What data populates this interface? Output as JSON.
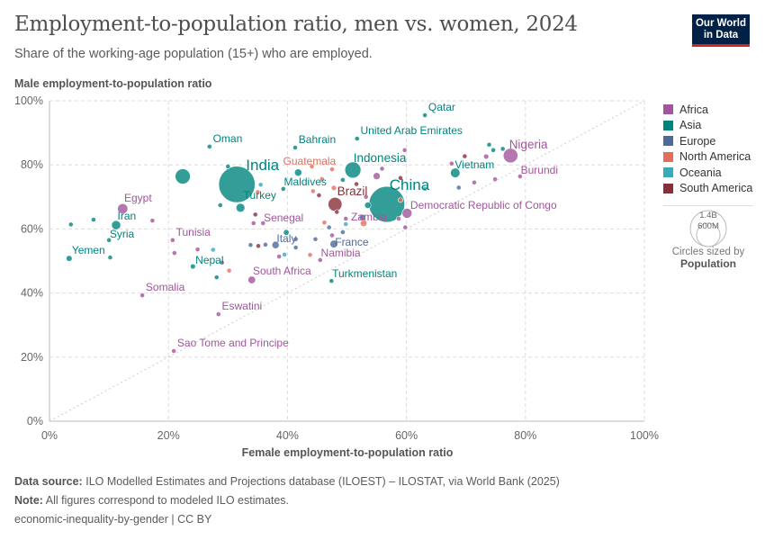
{
  "header": {
    "title": "Employment-to-population ratio, men vs. women, 2024",
    "subtitle": "Share of the working-age population (15+) who are employed.",
    "logo": "Our World in Data"
  },
  "legend": {
    "regions": [
      {
        "name": "Africa",
        "color": "#a2559c"
      },
      {
        "name": "Asia",
        "color": "#00847e"
      },
      {
        "name": "Europe",
        "color": "#4c6a9c"
      },
      {
        "name": "North America",
        "color": "#e56e5a"
      },
      {
        "name": "Oceania",
        "color": "#38aaba"
      },
      {
        "name": "South America",
        "color": "#883039"
      }
    ],
    "size_large": "1.4B",
    "size_small": "600M",
    "size_caption": "Circles sized by",
    "size_variable": "Population"
  },
  "footer": {
    "source_label": "Data source:",
    "source": "ILO Modelled Estimates and Projections database (ILOEST) – ILOSTAT, via World Bank (2025)",
    "note_label": "Note:",
    "note": "All figures correspond to modeled ILO estimates.",
    "link": "economic-inequality-by-gender | CC BY"
  },
  "chart_data": {
    "type": "scatter",
    "title": "Employment-to-population ratio, men vs. women, 2024",
    "xlabel": "Female employment-to-population ratio",
    "ylabel": "Male employment-to-population ratio",
    "xlim": [
      0,
      100
    ],
    "ylim": [
      0,
      100
    ],
    "x_ticks": [
      "0%",
      "20%",
      "40%",
      "60%",
      "80%",
      "100%"
    ],
    "y_ticks": [
      "0%",
      "20%",
      "40%",
      "60%",
      "80%",
      "100%"
    ],
    "grid": true,
    "reference_line": "y = x",
    "legend_position": "right",
    "points": [
      {
        "name": "Qatar",
        "region": "Asia",
        "x": 63.1,
        "y": 95.5,
        "pop": 3
      },
      {
        "name": "United Arab Emirates",
        "region": "Asia",
        "x": 51.7,
        "y": 88.2,
        "pop": 10
      },
      {
        "name": "Oman",
        "region": "Asia",
        "x": 26.9,
        "y": 85.7,
        "pop": 5
      },
      {
        "name": "Bahrain",
        "region": "Asia",
        "x": 41.3,
        "y": 85.4,
        "pop": 1.5
      },
      {
        "name": "India",
        "region": "Asia",
        "x": 31.5,
        "y": 73.9,
        "pop": 1450
      },
      {
        "name": "Indonesia",
        "region": "Asia",
        "x": 51.0,
        "y": 78.4,
        "pop": 283
      },
      {
        "name": "Guatemala",
        "region": "North America",
        "x": 45.8,
        "y": 75.6,
        "pop": 18
      },
      {
        "name": "Maldives",
        "region": "Asia",
        "x": 39.3,
        "y": 72.5,
        "pop": 0.5
      },
      {
        "name": "Turkey",
        "region": "Asia",
        "x": 32.1,
        "y": 66.6,
        "pop": 87
      },
      {
        "name": "Egypt",
        "region": "Africa",
        "x": 12.3,
        "y": 66.3,
        "pop": 116
      },
      {
        "name": "Iran",
        "region": "Asia",
        "x": 11.2,
        "y": 61.2,
        "pop": 91
      },
      {
        "name": "Syria",
        "region": "Asia",
        "x": 10.0,
        "y": 56.5,
        "pop": 24
      },
      {
        "name": "Yemen",
        "region": "Asia",
        "x": 3.3,
        "y": 50.8,
        "pop": 40
      },
      {
        "name": "Tunisia",
        "region": "Africa",
        "x": 20.7,
        "y": 56.5,
        "pop": 12
      },
      {
        "name": "Nepal",
        "region": "Asia",
        "x": 24.1,
        "y": 48.3,
        "pop": 30
      },
      {
        "name": "Senegal",
        "region": "Africa",
        "x": 35.9,
        "y": 61.8,
        "pop": 18
      },
      {
        "name": "Italy",
        "region": "Europe",
        "x": 38.0,
        "y": 55.0,
        "pop": 59
      },
      {
        "name": "South Africa",
        "region": "Africa",
        "x": 34.0,
        "y": 44.1,
        "pop": 64
      },
      {
        "name": "Somalia",
        "region": "Africa",
        "x": 15.6,
        "y": 39.3,
        "pop": 19
      },
      {
        "name": "Eswatini",
        "region": "Africa",
        "x": 28.4,
        "y": 33.4,
        "pop": 1.2
      },
      {
        "name": "Sao Tome and Principe",
        "region": "Africa",
        "x": 20.9,
        "y": 21.9,
        "pop": 0.2
      },
      {
        "name": "Namibia",
        "region": "Africa",
        "x": 45.5,
        "y": 50.3,
        "pop": 3
      },
      {
        "name": "France",
        "region": "Europe",
        "x": 47.8,
        "y": 55.3,
        "pop": 66
      },
      {
        "name": "Turkmenistan",
        "region": "Asia",
        "x": 47.4,
        "y": 43.8,
        "pop": 7
      },
      {
        "name": "Zambia",
        "region": "Africa",
        "x": 49.8,
        "y": 63.2,
        "pop": 21
      },
      {
        "name": "Brazil",
        "region": "South America",
        "x": 48.0,
        "y": 67.7,
        "pop": 212
      },
      {
        "name": "China",
        "region": "Asia",
        "x": 56.7,
        "y": 67.7,
        "pop": 1410
      },
      {
        "name": "Democratic Republic of Congo",
        "region": "Africa",
        "x": 60.1,
        "y": 64.9,
        "pop": 109
      },
      {
        "name": "Vietnam",
        "region": "Asia",
        "x": 68.2,
        "y": 77.5,
        "pop": 101
      },
      {
        "name": "Nigeria",
        "region": "Africa",
        "x": 77.5,
        "y": 82.9,
        "pop": 232
      },
      {
        "name": "Burundi",
        "region": "Africa",
        "x": 79.1,
        "y": 76.4,
        "pop": 14
      },
      {
        "region": "Asia",
        "x": 3.6,
        "y": 61.4,
        "pop": 10
      },
      {
        "region": "Asia",
        "x": 7.4,
        "y": 62.9,
        "pop": 10
      },
      {
        "region": "Asia",
        "x": 10.2,
        "y": 51.1,
        "pop": 3
      },
      {
        "region": "Africa",
        "x": 17.3,
        "y": 62.6,
        "pop": 12
      },
      {
        "region": "Asia",
        "x": 22.4,
        "y": 76.4,
        "pop": 250
      },
      {
        "region": "Asia",
        "x": 30.0,
        "y": 79.5,
        "pop": 4
      },
      {
        "region": "Asia",
        "x": 28.7,
        "y": 67.4,
        "pop": 4
      },
      {
        "region": "Asia",
        "x": 28.1,
        "y": 44.9,
        "pop": 3
      },
      {
        "region": "Africa",
        "x": 21.0,
        "y": 52.5,
        "pop": 5
      },
      {
        "region": "Africa",
        "x": 24.9,
        "y": 53.6,
        "pop": 4
      },
      {
        "region": "Oceania",
        "x": 27.5,
        "y": 53.5,
        "pop": 2
      },
      {
        "region": "Africa",
        "x": 29.0,
        "y": 49.5,
        "pop": 6
      },
      {
        "region": "North America",
        "x": 30.2,
        "y": 47.0,
        "pop": 3
      },
      {
        "region": "Oceania",
        "x": 35.5,
        "y": 73.8,
        "pop": 1
      },
      {
        "region": "North America",
        "x": 35.0,
        "y": 71.5,
        "pop": 3
      },
      {
        "region": "Asia",
        "x": 39.8,
        "y": 58.9,
        "pop": 36
      },
      {
        "region": "South America",
        "x": 34.6,
        "y": 64.5,
        "pop": 5
      },
      {
        "region": "Africa",
        "x": 34.3,
        "y": 61.8,
        "pop": 6
      },
      {
        "region": "Europe",
        "x": 33.8,
        "y": 55.0,
        "pop": 3
      },
      {
        "region": "South America",
        "x": 35.1,
        "y": 54.7,
        "pop": 3
      },
      {
        "region": "Europe",
        "x": 36.3,
        "y": 55.1,
        "pop": 3
      },
      {
        "region": "Europe",
        "x": 41.4,
        "y": 56.8,
        "pop": 10
      },
      {
        "region": "Oceania",
        "x": 39.5,
        "y": 52.0,
        "pop": 2
      },
      {
        "region": "Africa",
        "x": 38.6,
        "y": 51.4,
        "pop": 3
      },
      {
        "region": "North America",
        "x": 43.8,
        "y": 51.9,
        "pop": 3
      },
      {
        "region": "Europe",
        "x": 44.7,
        "y": 56.8,
        "pop": 20
      },
      {
        "region": "Europe",
        "x": 41.4,
        "y": 54.2,
        "pop": 4
      },
      {
        "region": "Asia",
        "x": 41.8,
        "y": 77.6,
        "pop": 60
      },
      {
        "region": "North America",
        "x": 44.1,
        "y": 79.5,
        "pop": 3
      },
      {
        "region": "North America",
        "x": 44.3,
        "y": 71.8,
        "pop": 4
      },
      {
        "region": "South America",
        "x": 45.3,
        "y": 70.5,
        "pop": 20
      },
      {
        "region": "North America",
        "x": 47.5,
        "y": 78.6,
        "pop": 4
      },
      {
        "region": "North America",
        "x": 47.8,
        "y": 72.8,
        "pop": 30
      },
      {
        "region": "South America",
        "x": 48.3,
        "y": 65.3,
        "pop": 4
      },
      {
        "region": "North America",
        "x": 46.2,
        "y": 62.0,
        "pop": 5
      },
      {
        "region": "Europe",
        "x": 47.0,
        "y": 60.5,
        "pop": 5
      },
      {
        "region": "Africa",
        "x": 47.5,
        "y": 58.0,
        "pop": 4
      },
      {
        "region": "Europe",
        "x": 49.3,
        "y": 59.0,
        "pop": 6
      },
      {
        "region": "Oceania",
        "x": 49.8,
        "y": 61.5,
        "pop": 3
      },
      {
        "region": "Asia",
        "x": 49.3,
        "y": 75.3,
        "pop": 20
      },
      {
        "region": "South America",
        "x": 51.6,
        "y": 74.0,
        "pop": 4
      },
      {
        "region": "Africa",
        "x": 55.0,
        "y": 76.5,
        "pop": 55
      },
      {
        "region": "Africa",
        "x": 55.9,
        "y": 78.8,
        "pop": 4
      },
      {
        "region": "Africa",
        "x": 59.7,
        "y": 84.6,
        "pop": 5
      },
      {
        "region": "South America",
        "x": 59.0,
        "y": 75.9,
        "pop": 6
      },
      {
        "region": "Africa",
        "x": 53.2,
        "y": 70.0,
        "pop": 8
      },
      {
        "region": "Asia",
        "x": 53.5,
        "y": 67.4,
        "pop": 45
      },
      {
        "region": "Europe",
        "x": 52.6,
        "y": 63.6,
        "pop": 45
      },
      {
        "region": "North America",
        "x": 52.8,
        "y": 61.8,
        "pop": 50
      },
      {
        "region": "Africa",
        "x": 58.7,
        "y": 63.2,
        "pop": 13
      },
      {
        "region": "Africa",
        "x": 59.8,
        "y": 60.5,
        "pop": 10
      },
      {
        "region": "Oceania",
        "x": 63.1,
        "y": 72.5,
        "pop": 2
      },
      {
        "region": "North America",
        "x": 59.0,
        "y": 69.0,
        "pop": 5
      },
      {
        "region": "Africa",
        "x": 67.6,
        "y": 80.4,
        "pop": 4
      },
      {
        "region": "South America",
        "x": 69.8,
        "y": 82.7,
        "pop": 4
      },
      {
        "region": "Europe",
        "x": 68.8,
        "y": 72.9,
        "pop": 3
      },
      {
        "region": "Africa",
        "x": 74.9,
        "y": 75.5,
        "pop": 10
      },
      {
        "region": "Africa",
        "x": 71.4,
        "y": 74.5,
        "pop": 6
      },
      {
        "region": "Africa",
        "x": 73.4,
        "y": 82.6,
        "pop": 30
      },
      {
        "region": "Asia",
        "x": 74.6,
        "y": 84.6,
        "pop": 4
      },
      {
        "region": "Asia",
        "x": 73.9,
        "y": 86.3,
        "pop": 4
      },
      {
        "region": "Asia",
        "x": 76.2,
        "y": 85.0,
        "pop": 10
      }
    ]
  }
}
